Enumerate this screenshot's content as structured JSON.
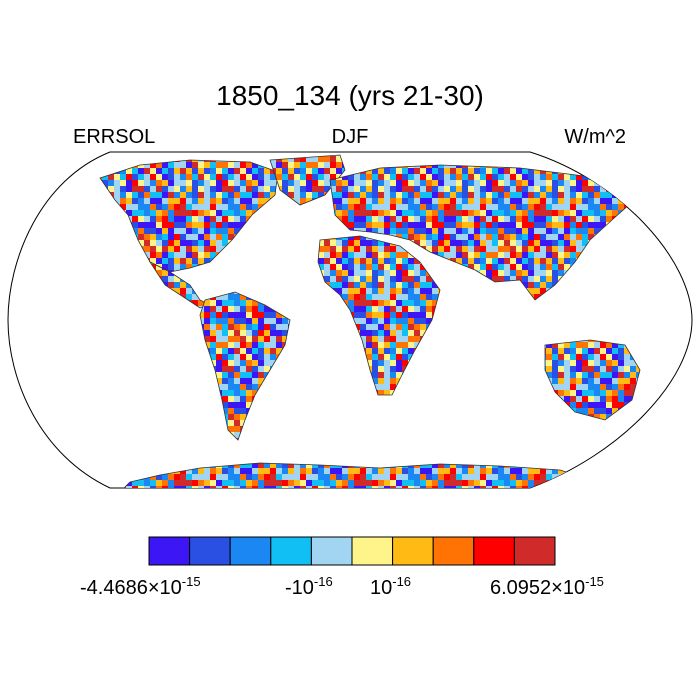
{
  "title": "1850_134 (yrs 21-30)",
  "left_label": "ERRSOL",
  "center_label": "DJF",
  "right_label": "W/m^2",
  "colorbar": {
    "colors": [
      "#3c16f5",
      "#2a4fe3",
      "#1b87f2",
      "#12bff4",
      "#a2d5f2",
      "#fff48a",
      "#ffba13",
      "#ff7204",
      "#ff0000",
      "#d12a2a"
    ],
    "labels": [
      {
        "mantissa": "-4.4686",
        "times": "×10",
        "exp": "-15"
      },
      {
        "mantissa": "-10",
        "times": "",
        "exp": "-16"
      },
      {
        "mantissa": "10",
        "times": "",
        "exp": "-16"
      },
      {
        "mantissa": "6.0952",
        "times": "×10",
        "exp": "-15"
      }
    ]
  },
  "map": {
    "projection": "Robinson",
    "land_outline_color": "#000000",
    "coast_color": "#333333"
  }
}
